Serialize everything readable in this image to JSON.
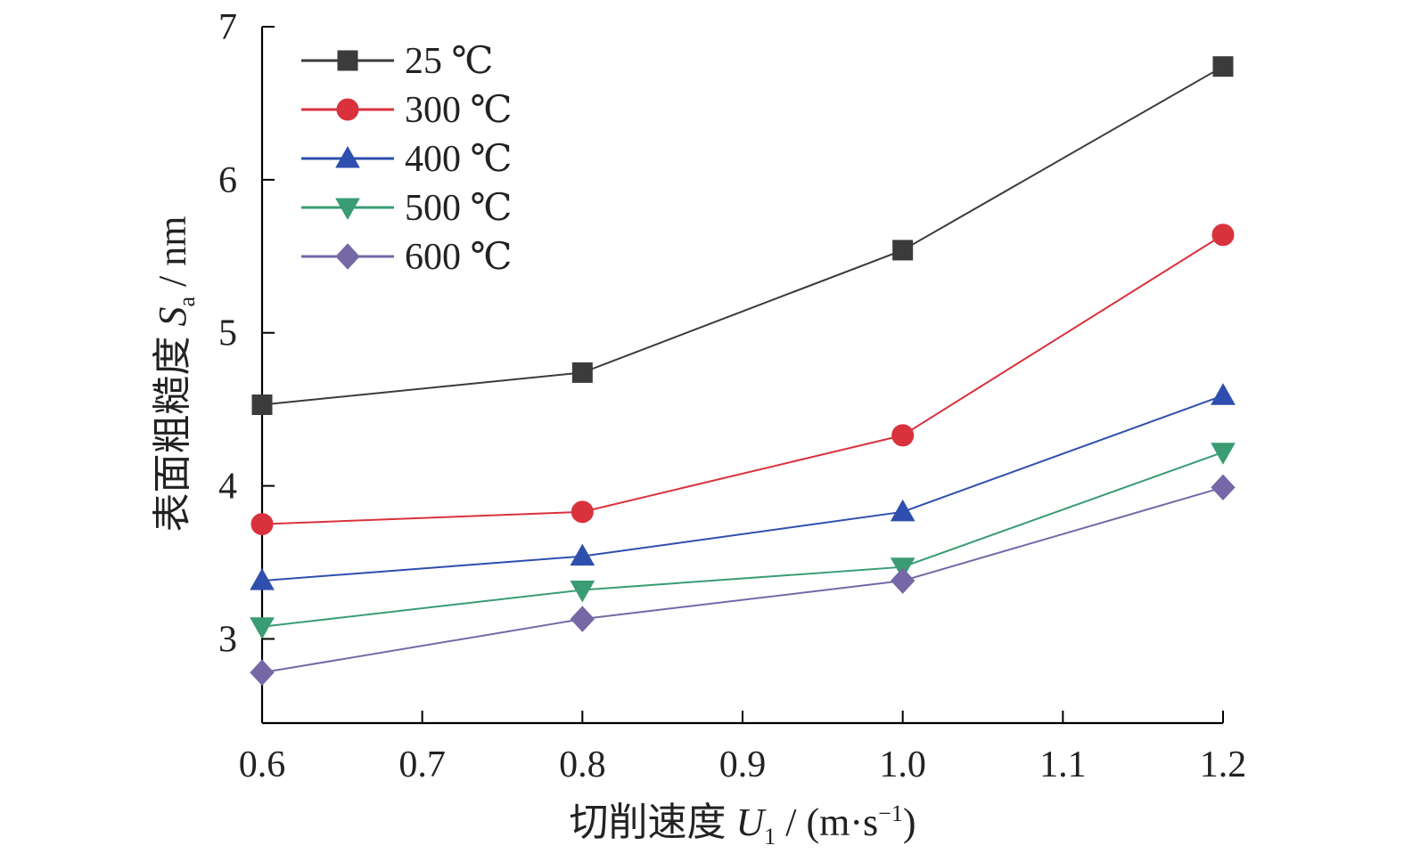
{
  "chart_data": {
    "type": "line",
    "xlabel_prefix": "切削速度 ",
    "xlabel_var": "U",
    "xlabel_sub": "1",
    "xlabel_unit": " / (m·s",
    "xlabel_sup": "−1",
    "xlabel_close": ")",
    "ylabel_prefix": "表面粗糙度 ",
    "ylabel_var": "S",
    "ylabel_sub": "a",
    "ylabel_unit": " / nm",
    "xlim": [
      0.6,
      1.2
    ],
    "ylim": [
      2.45,
      7.0
    ],
    "x_ticks": [
      {
        "value": 0.6,
        "label": "0.6"
      },
      {
        "value": 0.7,
        "label": "0.7"
      },
      {
        "value": 0.8,
        "label": "0.8"
      },
      {
        "value": 0.9,
        "label": "0.9"
      },
      {
        "value": 1.0,
        "label": "1.0"
      },
      {
        "value": 1.1,
        "label": "1.1"
      },
      {
        "value": 1.2,
        "label": "1.2"
      }
    ],
    "y_ticks": [
      {
        "value": 3,
        "label": "3"
      },
      {
        "value": 4,
        "label": "4"
      },
      {
        "value": 5,
        "label": "5"
      },
      {
        "value": 6,
        "label": "6"
      },
      {
        "value": 7,
        "label": "7"
      }
    ],
    "x": [
      0.6,
      0.8,
      1.0,
      1.2
    ],
    "series": [
      {
        "name": "25 ℃",
        "marker": "square",
        "color": "#3b3b3b",
        "values": [
          4.53,
          4.74,
          5.54,
          6.74
        ]
      },
      {
        "name": "300 ℃",
        "marker": "circle",
        "color": "#d9323d",
        "values": [
          3.75,
          3.83,
          4.33,
          5.64
        ]
      },
      {
        "name": "400 ℃",
        "marker": "triangle-up",
        "color": "#2f4fae",
        "values": [
          3.38,
          3.54,
          3.83,
          4.59
        ]
      },
      {
        "name": "500 ℃",
        "marker": "triangle-down",
        "color": "#3a9c73",
        "values": [
          3.08,
          3.32,
          3.47,
          4.22
        ]
      },
      {
        "name": "600 ℃",
        "marker": "diamond",
        "color": "#7668a6",
        "values": [
          2.78,
          3.13,
          3.38,
          3.99
        ]
      }
    ],
    "legend_position": "top-left",
    "grid": false
  }
}
